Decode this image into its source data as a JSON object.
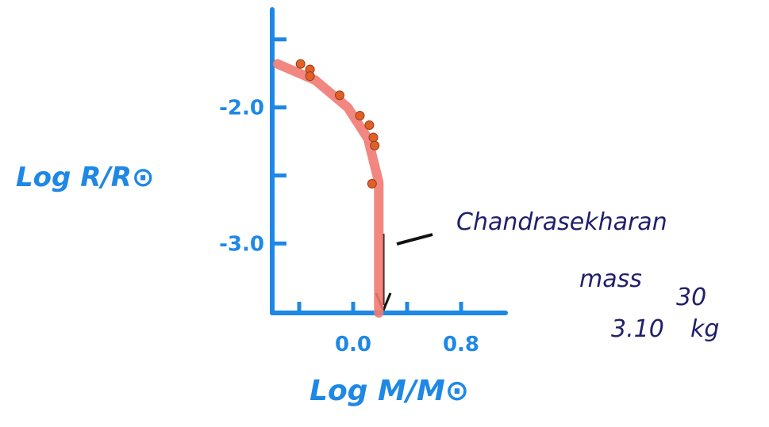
{
  "chart_data": {
    "type": "scatter",
    "x_label": "Log M/M⊙",
    "y_label": "Log R/R⊙",
    "xlim": [
      -0.6,
      1.1
    ],
    "ylim": [
      -3.51,
      -1.28
    ],
    "xticks": [
      {
        "value": -0.4,
        "label": null
      },
      {
        "value": 0,
        "label": "0.0"
      },
      {
        "value": 0.4,
        "label": null
      },
      0.8
    ],
    "yticks": [
      {
        "value": -1.5,
        "label": null
      },
      {
        "value": -2,
        "label": "-2.0"
      },
      {
        "value": -2.5,
        "label": null
      },
      {
        "value": -3,
        "label": "-3.0"
      }
    ],
    "axis_color": "#1e88e5",
    "series": [
      {
        "type": "scatter",
        "color": "#e0602a",
        "x": [
          -0.39,
          -0.32,
          -0.32,
          -0.1,
          0.05,
          0.12,
          0.15,
          0.16,
          0.14
        ],
        "values": [
          -1.68,
          -1.72,
          -1.77,
          -1.91,
          -2.06,
          -2.13,
          -2.22,
          -2.28,
          -2.56
        ]
      },
      {
        "type": "line",
        "color": "#f07a72",
        "x": [
          -0.56,
          -0.28,
          -0.04,
          0.11,
          0.19,
          0.19
        ],
        "values": [
          -1.68,
          -1.8,
          -2.0,
          -2.23,
          -2.55,
          -3.51
        ]
      }
    ],
    "annotation": {
      "lines": [
        "Chandrasekharan",
        "mass",
        "3.10",
        "30",
        "kg"
      ]
    }
  }
}
